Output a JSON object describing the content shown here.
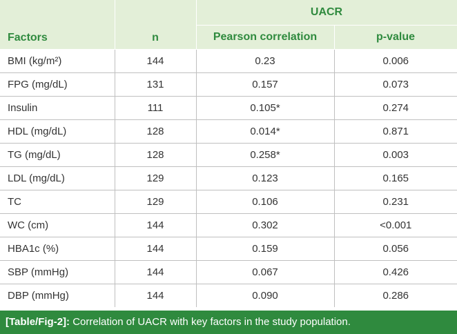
{
  "table": {
    "headers": {
      "group": "UACR",
      "factors": "Factors",
      "n": "n",
      "pearson": "Pearson correlation",
      "pvalue": "p-value"
    },
    "rows": [
      {
        "factor": "BMI (kg/m²)",
        "n": "144",
        "pearson": "0.23",
        "pvalue": "0.006"
      },
      {
        "factor": "FPG (mg/dL)",
        "n": "131",
        "pearson": "0.157",
        "pvalue": "0.073"
      },
      {
        "factor": "Insulin",
        "n": "111",
        "pearson": "0.105*",
        "pvalue": "0.274"
      },
      {
        "factor": "HDL (mg/dL)",
        "n": "128",
        "pearson": "0.014*",
        "pvalue": "0.871"
      },
      {
        "factor": "TG (mg/dL)",
        "n": "128",
        "pearson": "0.258*",
        "pvalue": "0.003"
      },
      {
        "factor": "LDL (mg/dL)",
        "n": "129",
        "pearson": "0.123",
        "pvalue": "0.165"
      },
      {
        "factor": "TC",
        "n": "129",
        "pearson": "0.106",
        "pvalue": "0.231"
      },
      {
        "factor": "WC (cm)",
        "n": "144",
        "pearson": "0.302",
        "pvalue": "<0.001"
      },
      {
        "factor": "HBA1c (%)",
        "n": "144",
        "pearson": "0.159",
        "pvalue": "0.056"
      },
      {
        "factor": "SBP (mmHg)",
        "n": "144",
        "pearson": "0.067",
        "pvalue": "0.426"
      },
      {
        "factor": "DBP (mmHg)",
        "n": "144",
        "pearson": "0.090",
        "pvalue": "0.286"
      }
    ]
  },
  "caption": {
    "label": "[Table/Fig-2]:",
    "text": "Correlation of UACR with key factors in the study population."
  },
  "colors": {
    "accent": "#2f8a3e",
    "header_bg": "#e3efd8",
    "border": "#bfbfbf"
  }
}
